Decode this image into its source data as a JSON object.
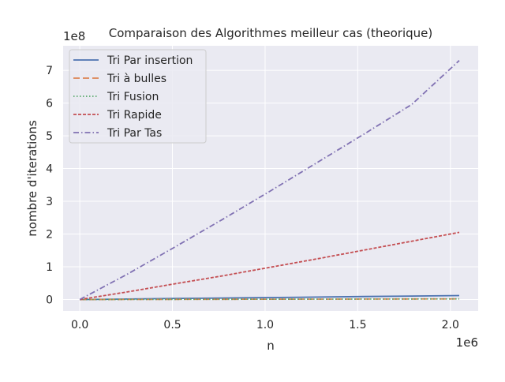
{
  "chart_data": {
    "type": "line",
    "title": "Comparaison des Algorithmes meilleur cas (theorique)",
    "xlabel": "n",
    "ylabel": "nombre d'iterations",
    "x_offset_label": "1e6",
    "y_offset_label": "1e8",
    "x_tick_labels": [
      "0.0",
      "0.5",
      "1.0",
      "1.5",
      "2.0"
    ],
    "y_tick_labels": [
      "0",
      "1",
      "2",
      "3",
      "4",
      "5",
      "6",
      "7"
    ],
    "xlim": [
      -90000,
      2150000
    ],
    "ylim": [
      -35000000,
      775000000
    ],
    "grid": true,
    "legend_position": "upper-left",
    "x": [
      0,
      256000,
      512000,
      768000,
      1024000,
      1280000,
      1536000,
      1792000,
      2048000
    ],
    "series": [
      {
        "name": "Tri Par insertion",
        "color": "#4c72b0",
        "dash": "",
        "values": [
          0,
          1500000,
          3000000,
          4500000,
          6000000,
          7500000,
          9000000,
          10500000,
          12000000
        ]
      },
      {
        "name": "Tri à bulles",
        "color": "#dd8452",
        "dash": "8,4",
        "values": [
          0,
          250000,
          500000,
          750000,
          1000000,
          1250000,
          1500000,
          1750000,
          2000000
        ]
      },
      {
        "name": "Tri Fusion",
        "color": "#55a868",
        "dash": "1.5,2.5",
        "values": [
          0,
          250000,
          500000,
          750000,
          1000000,
          1250000,
          1500000,
          1750000,
          2000000
        ]
      },
      {
        "name": "Tri Rapide",
        "color": "#c44e52",
        "dash": "4,2",
        "values": [
          0,
          23000000,
          48000000,
          72000000,
          98000000,
          124000000,
          151000000,
          178000000,
          205000000
        ]
      },
      {
        "name": "Tri Par Tas",
        "color": "#8172b3",
        "dash": "7,3,1.5,3",
        "values": [
          0,
          77000000,
          160000000,
          244000000,
          330000000,
          418000000,
          506000000,
          596000000,
          730000000
        ]
      }
    ]
  }
}
